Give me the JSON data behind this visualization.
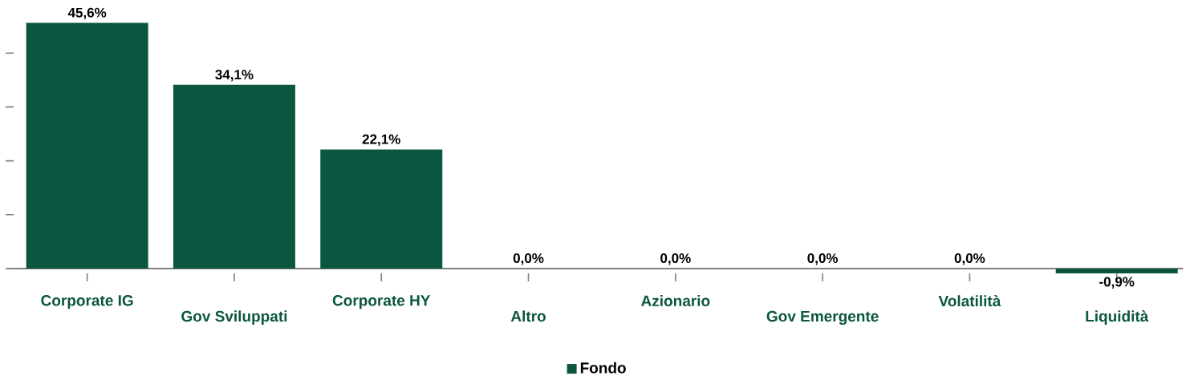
{
  "chart_data": {
    "type": "bar",
    "categories": [
      "Corporate IG",
      "Gov Sviluppati",
      "Corporate HY",
      "Altro",
      "Azionario",
      "Gov Emergente",
      "Volatilità",
      "Liquidità"
    ],
    "series": [
      {
        "name": "Fondo",
        "color": "#0b5640",
        "values": [
          45.6,
          34.1,
          22.1,
          0.0,
          0.0,
          0.0,
          0.0,
          -0.9
        ],
        "value_labels": [
          "45,6%",
          "34,1%",
          "22,1%",
          "0,0%",
          "0,0%",
          "0,0%",
          "0,0%",
          "-0,9%"
        ]
      }
    ],
    "tick_labels": "x",
    "legend": "bottom"
  }
}
